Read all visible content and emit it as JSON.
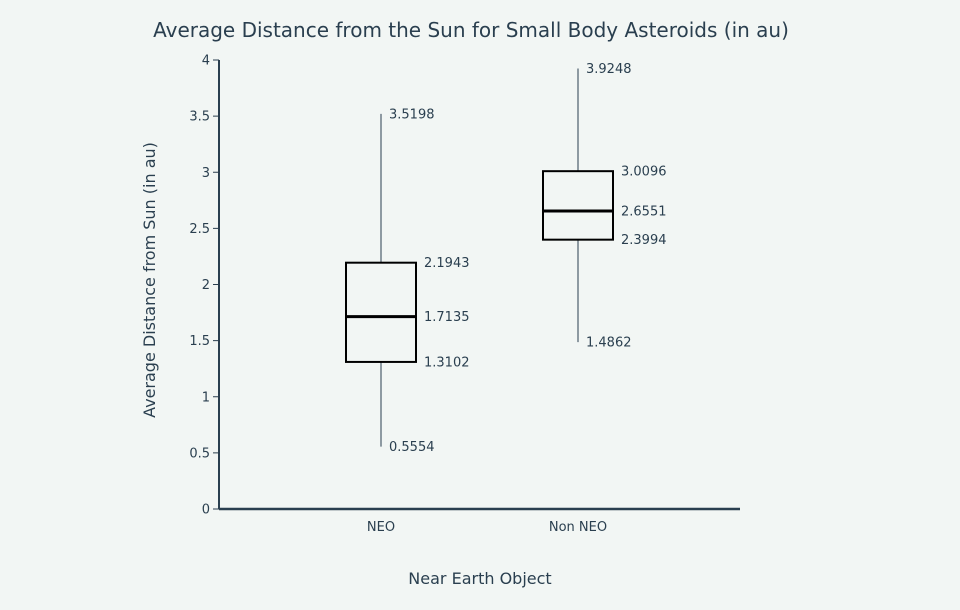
{
  "chart_data": {
    "type": "box",
    "title": "Average Distance from the Sun for Small Body Asteroids (in au)",
    "xlabel": "Near Earth Object",
    "ylabel": "Average Distance from Sun (in au)",
    "ylim": [
      0,
      4
    ],
    "yticks": [
      0,
      0.5,
      1,
      1.5,
      2,
      2.5,
      3,
      3.5,
      4
    ],
    "ytick_labels": [
      "0",
      "0.5",
      "1",
      "1.5",
      "2",
      "2.5",
      "3",
      "3.5",
      "4"
    ],
    "grid": false,
    "categories": [
      "NEO",
      "Non NEO"
    ],
    "series": [
      {
        "category": "NEO",
        "min": 0.5554,
        "q1": 1.3102,
        "median": 1.7135,
        "q3": 2.1943,
        "max": 3.5198,
        "labels": {
          "min": "0.5554",
          "q1": "1.3102",
          "median": "1.7135",
          "q3": "2.1943",
          "max": "3.5198"
        }
      },
      {
        "category": "Non NEO",
        "min": 1.4862,
        "q1": 2.3994,
        "median": 2.6551,
        "q3": 3.0096,
        "max": 3.9248,
        "labels": {
          "min": "1.4862",
          "q1": "2.3994",
          "median": "2.6551",
          "q3": "3.0096",
          "max": "3.9248"
        }
      }
    ],
    "colors": {
      "background": "#f2f6f4",
      "ink": "#2a3f4f",
      "box_stroke": "#000000",
      "box_fill": "#f2f6f4"
    }
  }
}
